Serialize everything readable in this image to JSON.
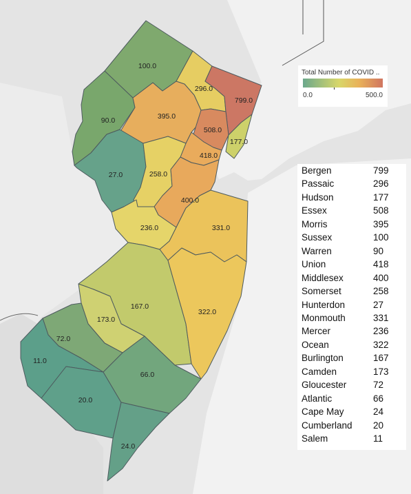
{
  "legend": {
    "title": "Total Number of COVID ..",
    "min": "0.0",
    "max": "500.0"
  },
  "counties": [
    {
      "key": "sussex",
      "label": "100.0",
      "color": "#7fa96e"
    },
    {
      "key": "passaic",
      "label": "296.0",
      "color": "#e6cd62"
    },
    {
      "key": "bergen",
      "label": "799.0",
      "color": "#cc7764"
    },
    {
      "key": "warren",
      "label": "90.0",
      "color": "#79a76c"
    },
    {
      "key": "morris",
      "label": "395.0",
      "color": "#e7ae5d"
    },
    {
      "key": "essex",
      "label": "508.0",
      "color": "#d88a5f"
    },
    {
      "key": "hudson",
      "label": "177.0",
      "color": "#cdd16a"
    },
    {
      "key": "union",
      "label": "418.0",
      "color": "#e9ab5c"
    },
    {
      "key": "hunterdon",
      "label": "27.0",
      "color": "#66a28a"
    },
    {
      "key": "somerset",
      "label": "258.0",
      "color": "#e6d165"
    },
    {
      "key": "middlesex",
      "label": "400.0",
      "color": "#e8a95c"
    },
    {
      "key": "mercer",
      "label": "236.0",
      "color": "#e5d56a"
    },
    {
      "key": "monmouth",
      "label": "331.0",
      "color": "#ebc35b"
    },
    {
      "key": "burlington",
      "label": "167.0",
      "color": "#c2ca6c"
    },
    {
      "key": "ocean",
      "label": "322.0",
      "color": "#ecc75c"
    },
    {
      "key": "camden",
      "label": "173.0",
      "color": "#cfd172"
    },
    {
      "key": "gloucester",
      "label": "72.0",
      "color": "#7ea876"
    },
    {
      "key": "salem",
      "label": "11.0",
      "color": "#5c9f8a"
    },
    {
      "key": "cumberland",
      "label": "20.0",
      "color": "#5fa08a"
    },
    {
      "key": "atlantic",
      "label": "66.0",
      "color": "#72a67d"
    },
    {
      "key": "capemay",
      "label": "24.0",
      "color": "#64a088"
    }
  ],
  "table": [
    {
      "name": "Bergen",
      "value": "799"
    },
    {
      "name": "Passaic",
      "value": "296"
    },
    {
      "name": "Hudson",
      "value": "177"
    },
    {
      "name": "Essex",
      "value": "508"
    },
    {
      "name": "Morris",
      "value": "395"
    },
    {
      "name": "Sussex",
      "value": "100"
    },
    {
      "name": "Warren",
      "value": "90"
    },
    {
      "name": "Union",
      "value": "418"
    },
    {
      "name": "Middlesex",
      "value": "400"
    },
    {
      "name": "Somerset",
      "value": "258"
    },
    {
      "name": "Hunterdon",
      "value": "27"
    },
    {
      "name": "Monmouth",
      "value": "331"
    },
    {
      "name": "Mercer",
      "value": "236"
    },
    {
      "name": "Ocean",
      "value": "322"
    },
    {
      "name": "Burlington",
      "value": "167"
    },
    {
      "name": "Camden",
      "value": "173"
    },
    {
      "name": "Gloucester",
      "value": "72"
    },
    {
      "name": "Atlantic",
      "value": "66"
    },
    {
      "name": "Cape May",
      "value": "24"
    },
    {
      "name": "Cumberland",
      "value": "20"
    },
    {
      "name": "Salem",
      "value": "11"
    }
  ]
}
